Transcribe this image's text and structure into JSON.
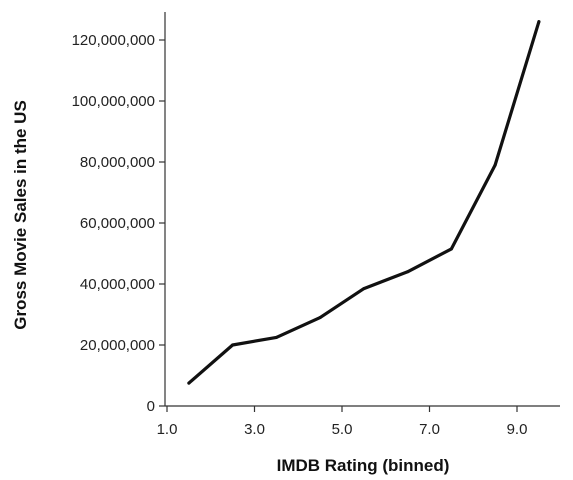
{
  "chart_data": {
    "type": "line",
    "title": "",
    "xlabel": "IMDB Rating (binned)",
    "ylabel": "Gross Movie Sales in the US",
    "xlim": [
      0.8,
      10.0
    ],
    "ylim": [
      0,
      128000000
    ],
    "x_ticks": [
      {
        "value": 1.0,
        "label": "1.0"
      },
      {
        "value": 3.0,
        "label": "3.0"
      },
      {
        "value": 5.0,
        "label": "5.0"
      },
      {
        "value": 7.0,
        "label": "7.0"
      },
      {
        "value": 9.0,
        "label": "9.0"
      }
    ],
    "y_ticks": [
      {
        "value": 0,
        "label": "0"
      },
      {
        "value": 20000000,
        "label": "20,000,000"
      },
      {
        "value": 40000000,
        "label": "40,000,000"
      },
      {
        "value": 60000000,
        "label": "60,000,000"
      },
      {
        "value": 80000000,
        "label": "80,000,000"
      },
      {
        "value": 100000000,
        "label": "100,000,000"
      },
      {
        "value": 120000000,
        "label": "120,000,000"
      }
    ],
    "grid": false,
    "series": [
      {
        "color": "#111111",
        "x": [
          1.5,
          2.5,
          3.5,
          4.5,
          5.5,
          6.5,
          7.5,
          8.5,
          9.5
        ],
        "y": [
          7500000,
          20000000,
          22500000,
          29000000,
          38500000,
          44000000,
          51500000,
          79000000,
          126000000
        ]
      }
    ]
  }
}
